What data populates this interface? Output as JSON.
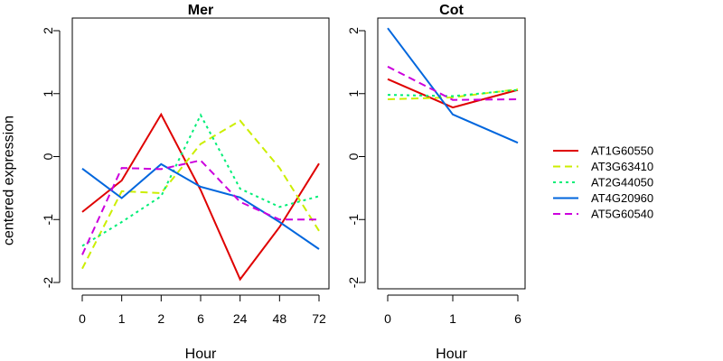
{
  "chart_data": {
    "ylabel": "centered expression",
    "xlabel": "Hour",
    "ylim": [
      -2,
      2
    ],
    "yticks": [
      -2,
      -1,
      0,
      1,
      2
    ],
    "ytick_labels": [
      "-2",
      "-1",
      "0",
      "1",
      "2"
    ],
    "legend_position": "right",
    "series_styles": [
      {
        "name": "AT1G60550",
        "color": "#DF0000",
        "dash": "solid"
      },
      {
        "name": "AT3G63410",
        "color": "#CCEE00",
        "dash": "dashed"
      },
      {
        "name": "AT2G44050",
        "color": "#00EE77",
        "dash": "dotted"
      },
      {
        "name": "AT4G20960",
        "color": "#0066DD",
        "dash": "solid"
      },
      {
        "name": "AT5G60540",
        "color": "#CC00DD",
        "dash": "dashed"
      }
    ],
    "panels": [
      {
        "type": "line",
        "title": "Mer",
        "categories": [
          "0",
          "1",
          "2",
          "6",
          "24",
          "48",
          "72"
        ],
        "series": [
          {
            "name": "AT1G60550",
            "values": [
              -0.88,
              -0.38,
              0.67,
              -0.53,
              -1.95,
              -1.12,
              -0.11
            ]
          },
          {
            "name": "AT3G63410",
            "values": [
              -1.78,
              -0.55,
              -0.58,
              0.2,
              0.57,
              -0.18,
              -1.18
            ]
          },
          {
            "name": "AT2G44050",
            "values": [
              -1.42,
              -1.04,
              -0.63,
              0.66,
              -0.51,
              -0.8,
              -0.63
            ]
          },
          {
            "name": "AT4G20960",
            "values": [
              -0.19,
              -0.66,
              -0.12,
              -0.48,
              -0.65,
              -1.04,
              -1.47
            ]
          },
          {
            "name": "AT5G60540",
            "values": [
              -1.56,
              -0.18,
              -0.2,
              -0.06,
              -0.72,
              -1.0,
              -1.0
            ]
          }
        ]
      },
      {
        "type": "line",
        "title": "Cot",
        "categories": [
          "0",
          "1",
          "6"
        ],
        "series": [
          {
            "name": "AT1G60550",
            "values": [
              1.23,
              0.78,
              1.06
            ]
          },
          {
            "name": "AT3G63410",
            "values": [
              0.91,
              0.94,
              1.07
            ]
          },
          {
            "name": "AT2G44050",
            "values": [
              0.98,
              0.96,
              1.06
            ]
          },
          {
            "name": "AT4G20960",
            "values": [
              2.04,
              0.67,
              0.22
            ]
          },
          {
            "name": "AT5G60540",
            "values": [
              1.43,
              0.9,
              0.91
            ]
          }
        ]
      }
    ]
  }
}
